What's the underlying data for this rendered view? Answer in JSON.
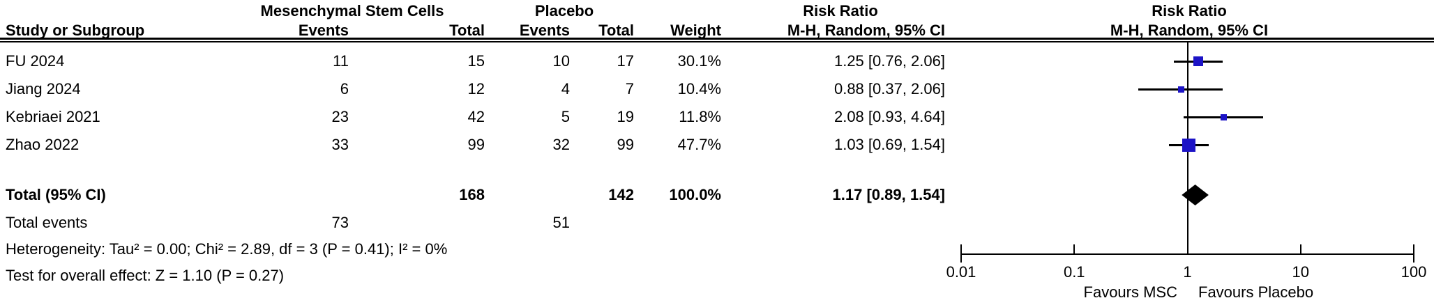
{
  "table": {
    "group1_header": "Mesenchymal Stem Cells",
    "group2_header": "Placebo",
    "rr_header_table": "Risk Ratio",
    "rr_header_plot": "Risk Ratio",
    "method_header_table": "M-H, Random, 95% CI",
    "method_header_plot": "M-H, Random, 95% CI",
    "col_study": "Study or Subgroup",
    "col_events1": "Events",
    "col_total1": "Total",
    "col_events2": "Events",
    "col_total2": "Total",
    "col_weight": "Weight"
  },
  "rows": [
    {
      "study": "FU 2024",
      "events1": "11",
      "total1": "15",
      "events2": "10",
      "total2": "17",
      "weight": "30.1%",
      "rr_ci": "1.25 [0.76, 2.06]"
    },
    {
      "study": "Jiang 2024",
      "events1": "6",
      "total1": "12",
      "events2": "4",
      "total2": "7",
      "weight": "10.4%",
      "rr_ci": "0.88 [0.37, 2.06]"
    },
    {
      "study": "Kebriaei 2021",
      "events1": "23",
      "total1": "42",
      "events2": "5",
      "total2": "19",
      "weight": "11.8%",
      "rr_ci": "2.08 [0.93, 4.64]"
    },
    {
      "study": "Zhao 2022",
      "events1": "33",
      "total1": "99",
      "events2": "32",
      "total2": "99",
      "weight": "47.7%",
      "rr_ci": "1.03 [0.69, 1.54]"
    }
  ],
  "total_row": {
    "label": "Total (95% CI)",
    "total1": "168",
    "total2": "142",
    "weight": "100.0%",
    "rr_ci": "1.17 [0.89, 1.54]"
  },
  "total_events": {
    "label": "Total events",
    "events1": "73",
    "events2": "51"
  },
  "footnotes": {
    "heterogeneity": "Heterogeneity: Tau² = 0.00; Chi² = 2.89, df = 3 (P = 0.41); I² = 0%",
    "overall_effect": "Test for overall effect: Z = 1.10 (P = 0.27)"
  },
  "chart_data": {
    "type": "scatter",
    "subtype": "forest_plot",
    "x_scale": "log",
    "xlim": [
      0.01,
      100
    ],
    "x_ticks": [
      0.01,
      0.1,
      1,
      10,
      100
    ],
    "x_tick_labels": [
      "0.01",
      "0.1",
      "1",
      "10",
      "100"
    ],
    "axis_label_left": "Favours MSC",
    "axis_label_right": "Favours Placebo",
    "marker_color": "#1c13c6",
    "diamond_color": "#000000",
    "reference_line": 1,
    "studies": [
      {
        "name": "FU 2024",
        "rr": 1.25,
        "ci_low": 0.76,
        "ci_high": 2.06,
        "weight": 30.1
      },
      {
        "name": "Jiang 2024",
        "rr": 0.88,
        "ci_low": 0.37,
        "ci_high": 2.06,
        "weight": 10.4
      },
      {
        "name": "Kebriaei 2021",
        "rr": 2.08,
        "ci_low": 0.93,
        "ci_high": 4.64,
        "weight": 11.8
      },
      {
        "name": "Zhao 2022",
        "rr": 1.03,
        "ci_low": 0.69,
        "ci_high": 1.54,
        "weight": 47.7
      }
    ],
    "total": {
      "rr": 1.17,
      "ci_low": 0.89,
      "ci_high": 1.54
    }
  }
}
